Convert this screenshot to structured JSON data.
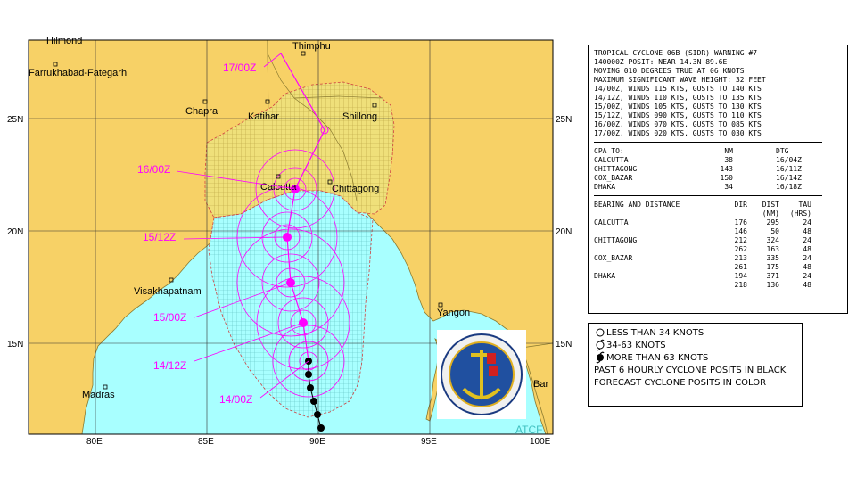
{
  "map": {
    "lat_labels": [
      "25N",
      "20N",
      "15N"
    ],
    "lon_labels": [
      "80E",
      "85E",
      "90E",
      "95E",
      "100E"
    ],
    "places": [
      {
        "name": "Farrukhabad-Fategarh"
      },
      {
        "name": "Chapra"
      },
      {
        "name": "Katihar"
      },
      {
        "name": "Thimphu"
      },
      {
        "name": "Shillong"
      },
      {
        "name": "Calcutta"
      },
      {
        "name": "Chittagong"
      },
      {
        "name": "Visakhapatnam"
      },
      {
        "name": "Yangon"
      },
      {
        "name": "Madras"
      },
      {
        "name": "Bar"
      }
    ],
    "forecast_labels": [
      "17/00Z",
      "16/00Z",
      "15/12Z",
      "15/00Z",
      "14/12Z",
      "14/00Z"
    ],
    "partial_label_top": "Hilmond",
    "partial_label_bottom": "ATCF",
    "colors": {
      "water": "#a8ffff",
      "land": "#f7d166",
      "wind_34_shade": "#c8b040",
      "forecast_track": "#ff00ff",
      "past_track": "#000000",
      "grid": "#303030"
    },
    "seal": {
      "description_icon": "jtwc-seal-icon",
      "text": "JOINT TYPHOON WARNING CENTER"
    }
  },
  "warning": {
    "header_lines": [
      "TROPICAL CYCLONE 06B (SIDR) WARNING #7",
      "140000Z POSIT: NEAR 14.3N 89.6E",
      "MOVING 010 DEGREES TRUE AT 06 KNOTS",
      "MAXIMUM SIGNIFICANT WAVE HEIGHT: 32 FEET",
      "14/00Z, WINDS 115 KTS, GUSTS TO 140 KTS",
      "14/12Z, WINDS 110 KTS, GUSTS TO 135 KTS",
      "15/00Z, WINDS 105 KTS, GUSTS TO 130 KTS",
      "15/12Z, WINDS 090 KTS, GUSTS TO 110 KTS",
      "16/00Z, WINDS 070 KTS, GUSTS TO 085 KTS",
      "17/00Z, WINDS 020 KTS, GUSTS TO 030 KTS"
    ],
    "cpa_header": {
      "label": "CPA TO:",
      "nm": "NM",
      "dtg": "DTG"
    },
    "cpa_rows": [
      {
        "place": "CALCUTTA",
        "nm": "38",
        "dtg": "16/04Z"
      },
      {
        "place": "CHITTAGONG",
        "nm": "143",
        "dtg": "16/11Z"
      },
      {
        "place": "COX_BAZAR",
        "nm": "150",
        "dtg": "16/14Z"
      },
      {
        "place": "DHAKA",
        "nm": "34",
        "dtg": "16/18Z"
      }
    ],
    "bearing_header": {
      "label": "BEARING AND DISTANCE",
      "dir": "DIR",
      "dist": "DIST",
      "tau": "TAU",
      "dist_unit": "(NM)",
      "tau_unit": "(HRS)"
    },
    "bearing_rows": [
      {
        "place": "CALCUTTA",
        "dir": "176",
        "dist": "295",
        "tau": "24"
      },
      {
        "place": "",
        "dir": "146",
        "dist": "50",
        "tau": "48"
      },
      {
        "place": "CHITTAGONG",
        "dir": "212",
        "dist": "324",
        "tau": "24"
      },
      {
        "place": "",
        "dir": "262",
        "dist": "163",
        "tau": "48"
      },
      {
        "place": "COX_BAZAR",
        "dir": "213",
        "dist": "335",
        "tau": "24"
      },
      {
        "place": "",
        "dir": "261",
        "dist": "175",
        "tau": "48"
      },
      {
        "place": "DHAKA",
        "dir": "194",
        "dist": "371",
        "tau": "24"
      },
      {
        "place": "",
        "dir": "218",
        "dist": "136",
        "tau": "48"
      }
    ]
  },
  "legend": {
    "items": [
      {
        "icon": "open-circle-icon",
        "label": "LESS THAN 34 KNOTS"
      },
      {
        "icon": "hollow-cyclone-icon",
        "label": "34-63 KNOTS"
      },
      {
        "icon": "filled-cyclone-icon",
        "label": "MORE THAN 63 KNOTS"
      }
    ],
    "notes": [
      "PAST 6 HOURLY CYCLONE POSITS IN BLACK",
      "FORECAST CYCLONE POSITS IN COLOR"
    ]
  }
}
